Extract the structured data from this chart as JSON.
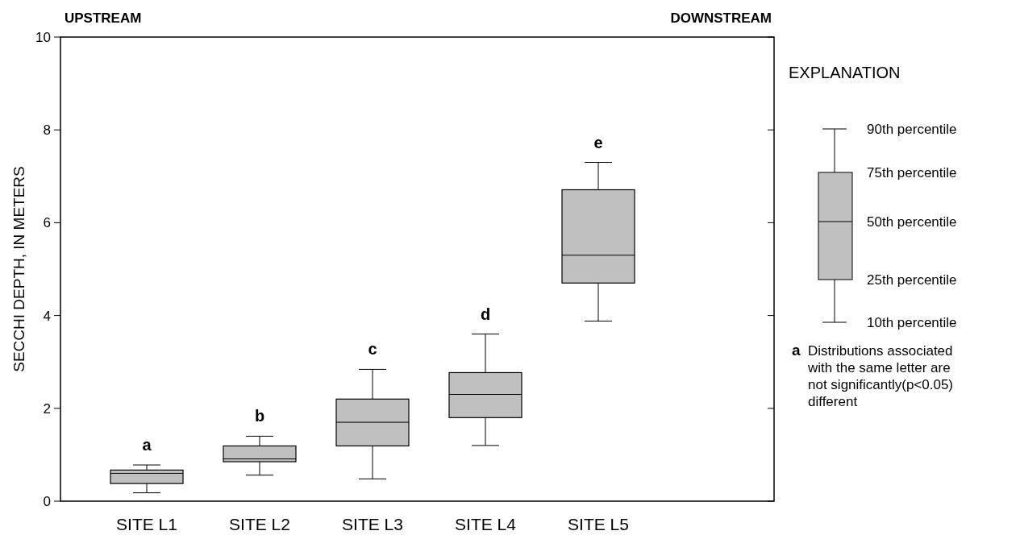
{
  "chart_data": {
    "type": "box",
    "ylabel": "SECCHI DEPTH, IN METERS",
    "categories": [
      "SITE L1",
      "SITE L2",
      "SITE L3",
      "SITE L4",
      "SITE L5"
    ],
    "boxes": [
      {
        "low": 0.18,
        "q1": 0.38,
        "median": 0.6,
        "q3": 0.67,
        "high": 0.78
      },
      {
        "low": 0.56,
        "q1": 0.85,
        "median": 0.91,
        "q3": 1.19,
        "high": 1.4
      },
      {
        "low": 0.48,
        "q1": 1.19,
        "median": 1.7,
        "q3": 2.2,
        "high": 2.84
      },
      {
        "low": 1.2,
        "q1": 1.8,
        "median": 2.3,
        "q3": 2.77,
        "high": 3.6
      },
      {
        "low": 3.88,
        "q1": 4.7,
        "median": 5.3,
        "q3": 6.71,
        "high": 7.3
      }
    ],
    "color": "#c0c0c0",
    "ylim": [
      0,
      10
    ],
    "yticks": [
      0,
      2,
      4,
      6,
      8,
      10
    ],
    "grid": false,
    "annotations": [
      "UPSTREAM",
      "DOWNSTREAM",
      "EXPLANATION",
      "90th percentile",
      "75th percentile",
      "50th percentile",
      "25th percentile",
      "10th percentile",
      "a",
      "Distributions associated with the same letter are not significantly(p<0.05) different",
      "a",
      "b",
      "c",
      "d",
      "e"
    ]
  }
}
